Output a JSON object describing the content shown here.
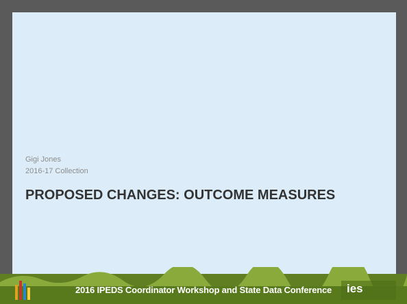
{
  "slide": {
    "author": "Gigi Jones",
    "subtitle": "2016-17 Collection",
    "title": "PROPOSED CHANGES: OUTCOME MEASURES"
  },
  "footer": {
    "conference": "2016 IPEDS Coordinator Workshop and State Data Conference",
    "logo": "ies"
  }
}
